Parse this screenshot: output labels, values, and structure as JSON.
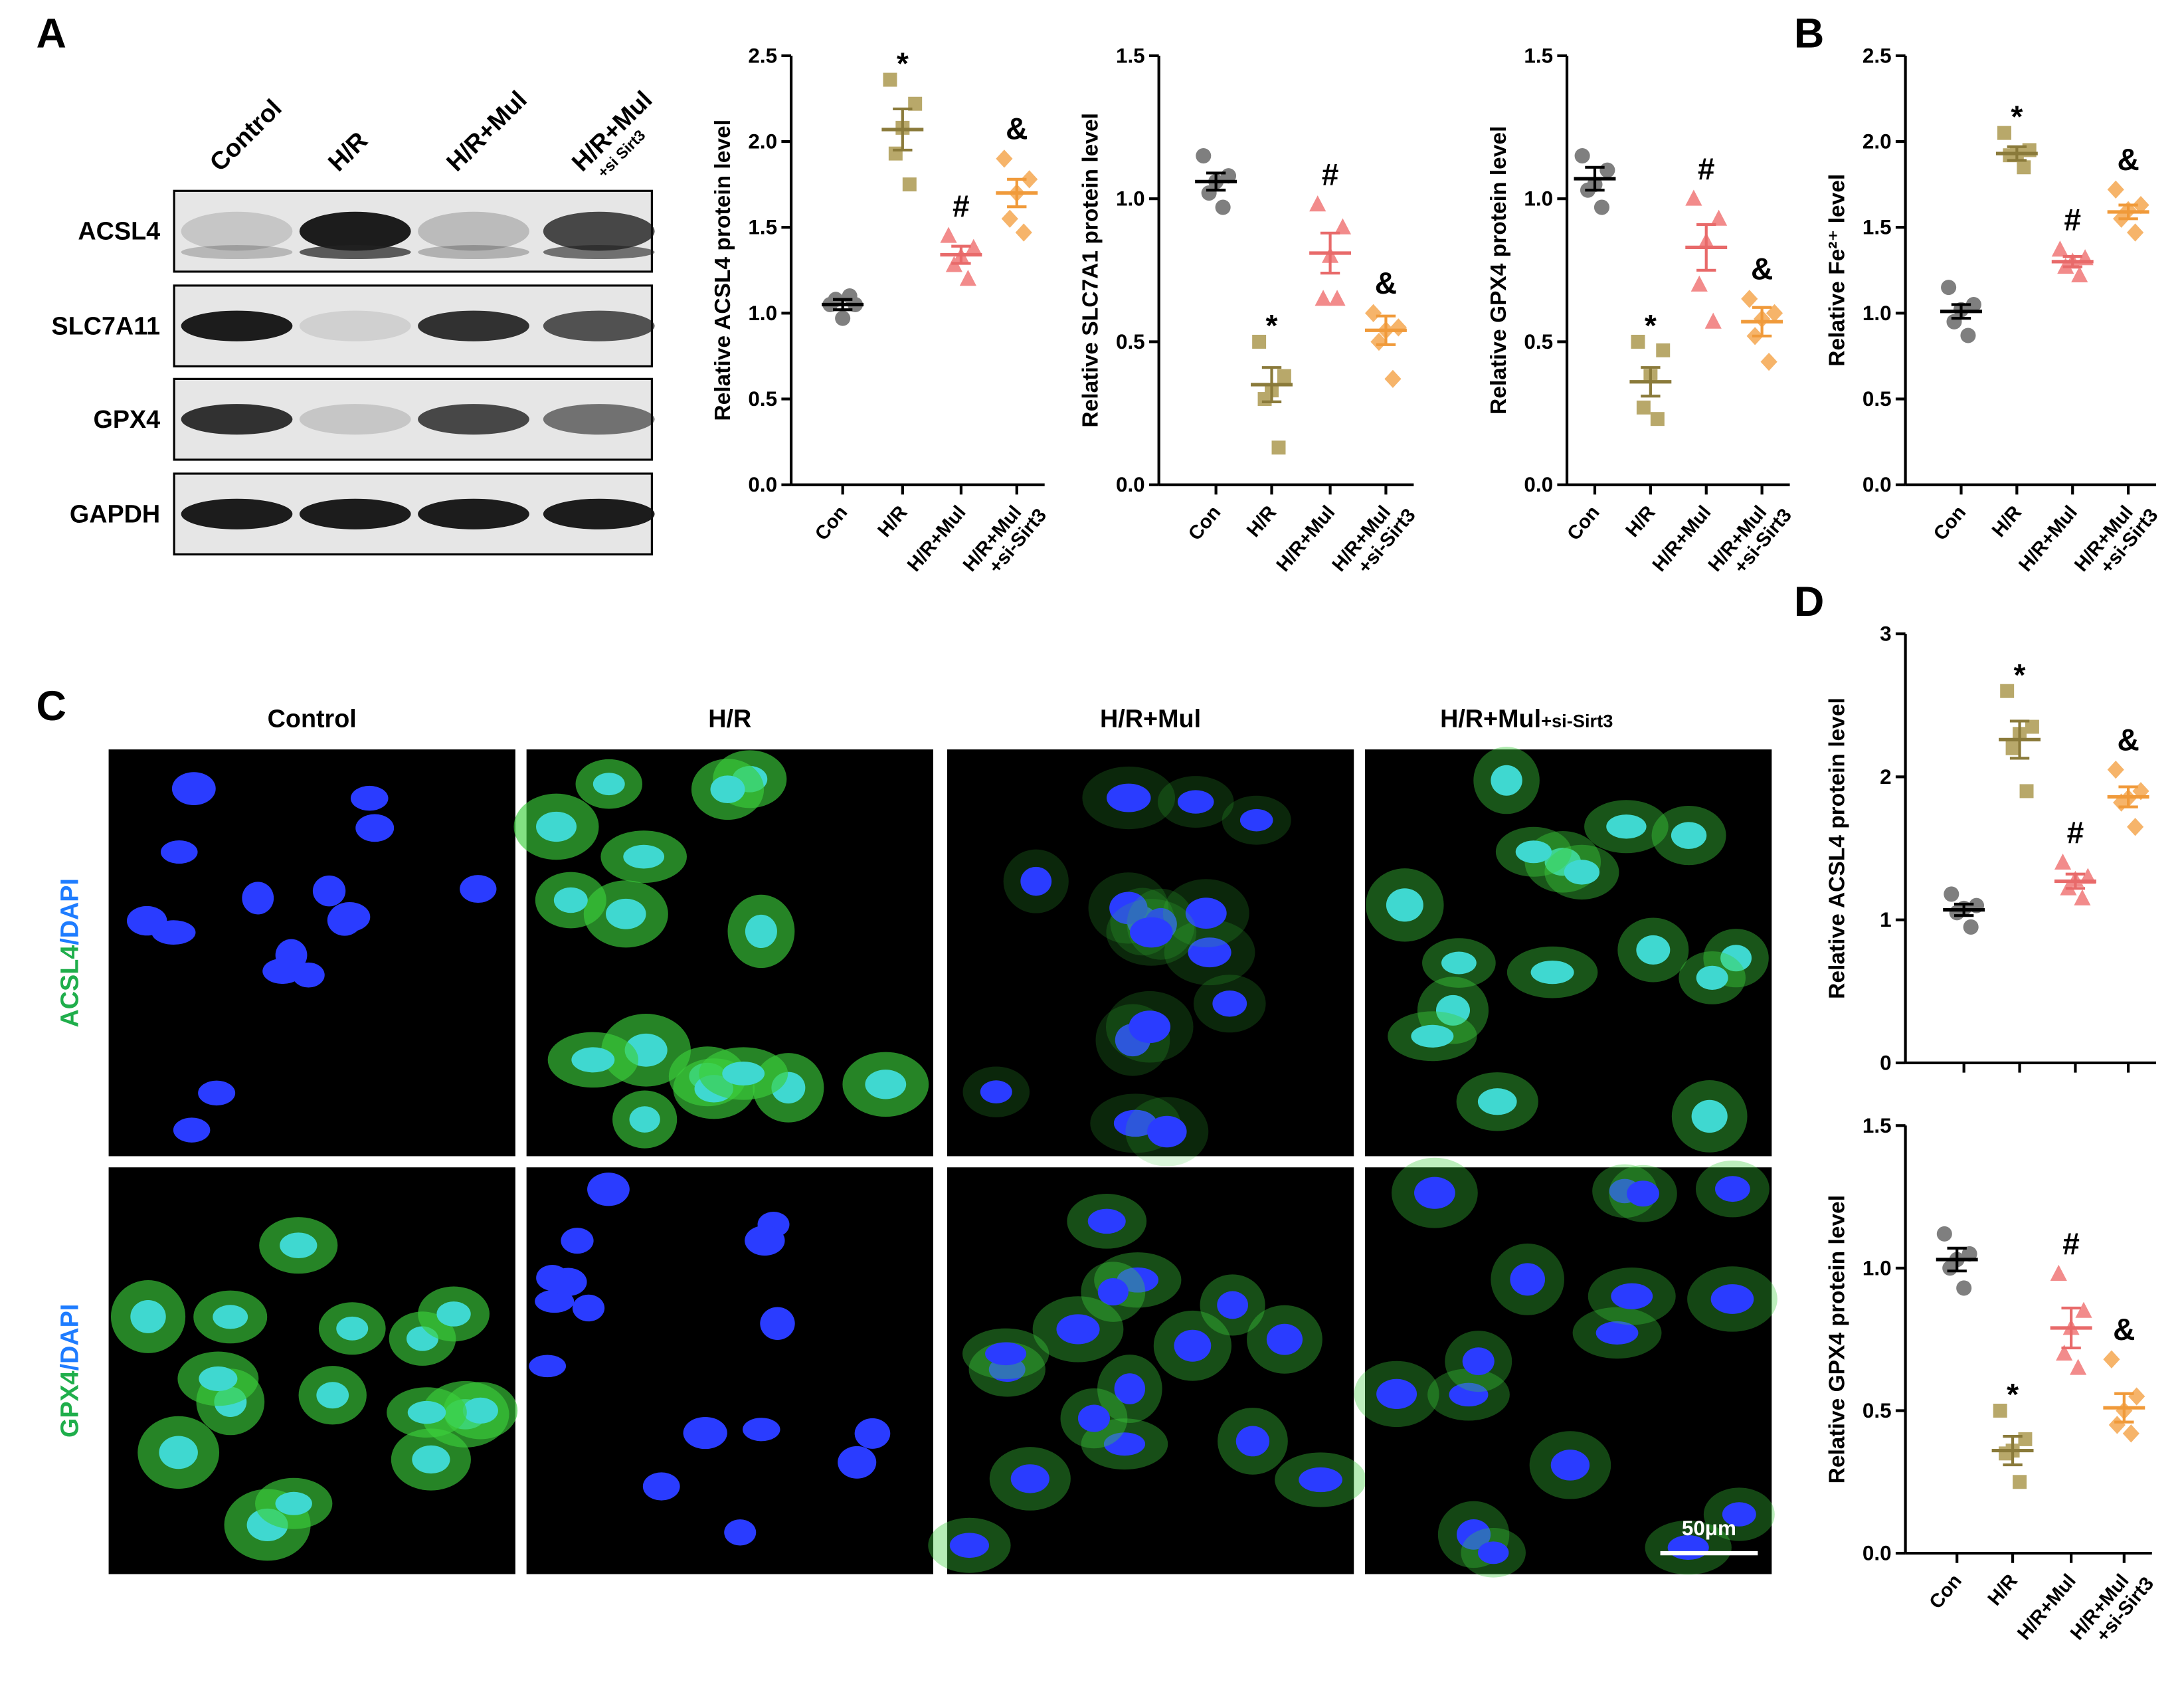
{
  "panel_labels": [
    "A",
    "B",
    "C",
    "D"
  ],
  "western_blot": {
    "lanes": [
      [
        "Control"
      ],
      [
        "H/R"
      ],
      [
        "H/R+Mul"
      ],
      [
        "H/R+Mul",
        "+si Sirt3"
      ]
    ],
    "rows": [
      "ACSL4",
      "SLC7A11",
      "GPX4",
      "GAPDH"
    ]
  },
  "microscopy": {
    "columns": [
      [
        "Control"
      ],
      [
        "H/R"
      ],
      [
        "H/R+Mul"
      ],
      [
        "H/R+Mul",
        "+si-Sirt3"
      ]
    ],
    "rows": [
      [
        "ACSL4",
        "/DAPI"
      ],
      [
        "GPX4",
        "/DAPI"
      ]
    ],
    "scale_bar": "50μm"
  },
  "chart_data": [
    {
      "type": "dot",
      "ylabel": "Relative ACSL4 protein level",
      "categories": [
        [
          "Con"
        ],
        [
          "H/R"
        ],
        [
          "H/R+Mul"
        ],
        [
          "H/R+Mul",
          "+si-Sirt3"
        ]
      ],
      "points": [
        [
          1.05,
          1.05,
          0.97,
          1.08,
          1.1
        ],
        [
          2.36,
          2.22,
          2.08,
          1.93,
          1.75
        ],
        [
          1.45,
          1.38,
          1.33,
          1.28,
          1.2
        ],
        [
          1.9,
          1.78,
          1.7,
          1.55,
          1.47
        ]
      ],
      "means": [
        1.05,
        2.07,
        1.34,
        1.7
      ],
      "errors": [
        0.03,
        0.12,
        0.05,
        0.08
      ],
      "annotations": [
        null,
        "*",
        "#",
        "&"
      ],
      "colors": [
        "#7f7f7f",
        "#b8a86a",
        "#f28b8b",
        "#f6b46a"
      ],
      "mean_colors": [
        "#000000",
        "#8a7a3a",
        "#e86a6a",
        "#f09a3a"
      ],
      "markers": [
        "circle",
        "square",
        "triangle",
        "diamond"
      ],
      "ylim": [
        0,
        2.5
      ],
      "yticks": [
        {
          "value": 0,
          "label": "0.0"
        },
        0.5,
        {
          "value": 1,
          "label": "1.0"
        },
        1.5,
        {
          "value": 2,
          "label": "2.0"
        },
        2.5
      ]
    },
    {
      "type": "dot",
      "ylabel": "Relative SLC7A1 protein level",
      "categories": [
        [
          "Con"
        ],
        [
          "H/R"
        ],
        [
          "H/R+Mul"
        ],
        [
          "H/R+Mul",
          "+si-Sirt3"
        ]
      ],
      "points": [
        [
          1.15,
          1.08,
          1.06,
          1.02,
          0.97
        ],
        [
          0.5,
          0.38,
          0.33,
          0.3,
          0.13
        ],
        [
          0.98,
          0.9,
          0.8,
          0.65,
          0.65
        ],
        [
          0.6,
          0.55,
          0.54,
          0.5,
          0.37
        ]
      ],
      "means": [
        1.06,
        0.35,
        0.81,
        0.54
      ],
      "errors": [
        0.03,
        0.06,
        0.07,
        0.05
      ],
      "annotations": [
        null,
        "*",
        "#",
        "&"
      ],
      "colors": [
        "#7f7f7f",
        "#b8a86a",
        "#f28b8b",
        "#f6b46a"
      ],
      "mean_colors": [
        "#000000",
        "#8a7a3a",
        "#e86a6a",
        "#f09a3a"
      ],
      "markers": [
        "circle",
        "square",
        "triangle",
        "diamond"
      ],
      "ylim": [
        0,
        1.5
      ],
      "yticks": [
        {
          "value": 0,
          "label": "0.0"
        },
        0.5,
        {
          "value": 1,
          "label": "1.0"
        },
        1.5
      ]
    },
    {
      "type": "dot",
      "ylabel": "Relative GPX4 protein level",
      "categories": [
        [
          "Con"
        ],
        [
          "H/R"
        ],
        [
          "H/R+Mul"
        ],
        [
          "H/R+Mul",
          "+si-Sirt3"
        ]
      ],
      "points": [
        [
          1.15,
          1.1,
          1.05,
          1.03,
          0.97
        ],
        [
          0.5,
          0.47,
          0.38,
          0.27,
          0.23
        ],
        [
          1.0,
          0.93,
          0.85,
          0.7,
          0.57
        ],
        [
          0.65,
          0.6,
          0.58,
          0.52,
          0.43
        ]
      ],
      "means": [
        1.07,
        0.36,
        0.83,
        0.57
      ],
      "errors": [
        0.04,
        0.05,
        0.08,
        0.05
      ],
      "annotations": [
        null,
        "*",
        "#",
        "&"
      ],
      "colors": [
        "#7f7f7f",
        "#b8a86a",
        "#f28b8b",
        "#f6b46a"
      ],
      "mean_colors": [
        "#000000",
        "#8a7a3a",
        "#e86a6a",
        "#f09a3a"
      ],
      "markers": [
        "circle",
        "square",
        "triangle",
        "diamond"
      ],
      "ylim": [
        0,
        1.5
      ],
      "yticks": [
        {
          "value": 0,
          "label": "0.0"
        },
        0.5,
        {
          "value": 1,
          "label": "1.0"
        },
        1.5
      ]
    },
    {
      "type": "dot",
      "ylabel": "Relative Fe²⁺ level",
      "categories": [
        [
          "Con"
        ],
        [
          "H/R"
        ],
        [
          "H/R+Mul"
        ],
        [
          "H/R+Mul",
          "+si-Sirt3"
        ]
      ],
      "points": [
        [
          1.15,
          1.05,
          1.02,
          0.95,
          0.87
        ],
        [
          2.05,
          1.95,
          1.93,
          1.92,
          1.85
        ],
        [
          1.37,
          1.32,
          1.3,
          1.27,
          1.22
        ],
        [
          1.72,
          1.63,
          1.6,
          1.55,
          1.47
        ]
      ],
      "means": [
        1.01,
        1.93,
        1.3,
        1.59
      ],
      "errors": [
        0.04,
        0.04,
        0.03,
        0.04
      ],
      "annotations": [
        null,
        "*",
        "#",
        "&"
      ],
      "colors": [
        "#7f7f7f",
        "#b8a86a",
        "#f28b8b",
        "#f6b46a"
      ],
      "mean_colors": [
        "#000000",
        "#8a7a3a",
        "#e86a6a",
        "#f09a3a"
      ],
      "markers": [
        "circle",
        "square",
        "triangle",
        "diamond"
      ],
      "ylim": [
        0,
        2.5
      ],
      "yticks": [
        {
          "value": 0,
          "label": "0.0"
        },
        0.5,
        {
          "value": 1,
          "label": "1.0"
        },
        1.5,
        {
          "value": 2,
          "label": "2.0"
        },
        2.5
      ]
    },
    {
      "type": "dot",
      "ylabel": "Relative ACSL4 protein level",
      "points": [
        [
          1.18,
          1.1,
          1.08,
          1.05,
          0.95
        ],
        [
          2.6,
          2.35,
          2.3,
          2.2,
          1.9
        ],
        [
          1.4,
          1.3,
          1.28,
          1.22,
          1.15
        ],
        [
          2.05,
          1.9,
          1.85,
          1.82,
          1.65
        ]
      ],
      "means": [
        1.07,
        2.26,
        1.27,
        1.86
      ],
      "errors": [
        0.04,
        0.13,
        0.05,
        0.07
      ],
      "annotations": [
        null,
        "*",
        "#",
        "&"
      ],
      "colors": [
        "#7f7f7f",
        "#b8a86a",
        "#f28b8b",
        "#f6b46a"
      ],
      "mean_colors": [
        "#000000",
        "#8a7a3a",
        "#e86a6a",
        "#f09a3a"
      ],
      "markers": [
        "circle",
        "square",
        "triangle",
        "diamond"
      ],
      "ylim": [
        0,
        3
      ],
      "yticks": [
        0,
        1,
        2,
        3
      ]
    },
    {
      "type": "dot",
      "ylabel": "Relative GPX4 protein level",
      "categories": [
        [
          "Con"
        ],
        [
          "H/R"
        ],
        [
          "H/R+Mul"
        ],
        [
          "H/R+Mul",
          "+si-Sirt3"
        ]
      ],
      "points": [
        [
          1.12,
          1.05,
          1.03,
          1.0,
          0.93
        ],
        [
          0.5,
          0.4,
          0.36,
          0.35,
          0.25
        ],
        [
          0.98,
          0.85,
          0.79,
          0.7,
          0.65
        ],
        [
          0.68,
          0.55,
          0.5,
          0.45,
          0.42
        ]
      ],
      "means": [
        1.03,
        0.36,
        0.79,
        0.51
      ],
      "errors": [
        0.04,
        0.05,
        0.07,
        0.05
      ],
      "annotations": [
        null,
        "*",
        "#",
        "&"
      ],
      "colors": [
        "#7f7f7f",
        "#b8a86a",
        "#f28b8b",
        "#f6b46a"
      ],
      "mean_colors": [
        "#000000",
        "#8a7a3a",
        "#e86a6a",
        "#f09a3a"
      ],
      "markers": [
        "circle",
        "square",
        "triangle",
        "diamond"
      ],
      "ylim": [
        0,
        1.5
      ],
      "yticks": [
        {
          "value": 0,
          "label": "0.0"
        },
        0.5,
        {
          "value": 1,
          "label": "1.0"
        },
        1.5
      ]
    }
  ]
}
